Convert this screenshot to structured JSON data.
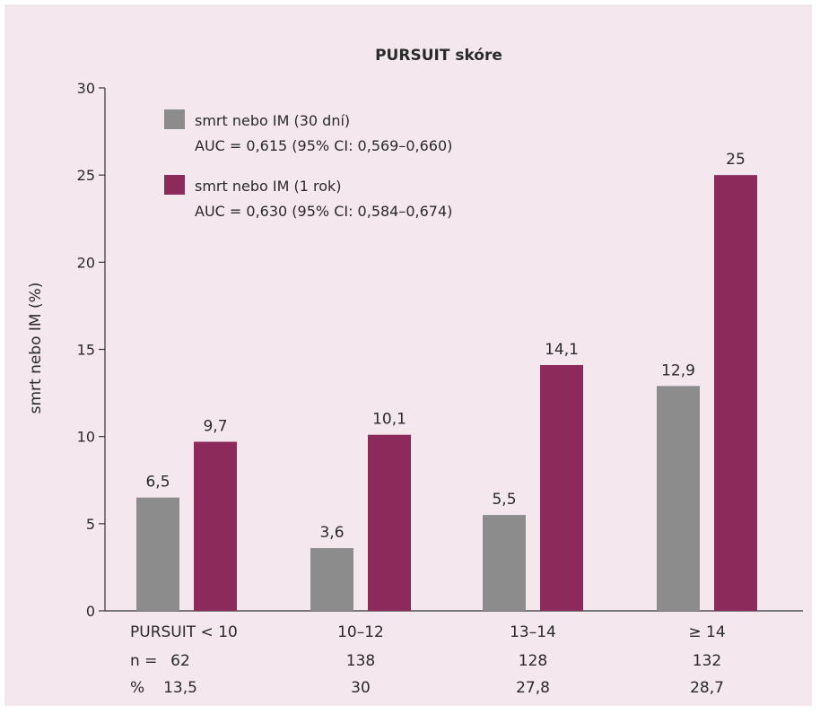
{
  "chart_data": {
    "type": "bar",
    "title": "PURSUIT skóre",
    "ylabel": "smrt nebo IM (%)",
    "xlabel": "",
    "ylim": [
      0,
      30
    ],
    "yticks": [
      0,
      5,
      10,
      15,
      20,
      25,
      30
    ],
    "grid": false,
    "legend_position": "top-left",
    "categories": [
      "PURSUIT < 10",
      "10–12",
      "13–14",
      "≥ 14"
    ],
    "category_rows": [
      {
        "prefix": "n =",
        "values": [
          "62",
          "138",
          "128",
          "132"
        ]
      },
      {
        "prefix": "%",
        "values": [
          "13,5",
          "30",
          "27,8",
          "28,7"
        ]
      }
    ],
    "series": [
      {
        "name": "smrt nebo IM (30 dní)",
        "auc": "AUC = 0,615 (95% CI: 0,569–0,660)",
        "color": "#8c8c8c",
        "values": [
          6.5,
          3.6,
          5.5,
          12.9
        ],
        "labels": [
          "6,5",
          "3,6",
          "5,5",
          "12,9"
        ]
      },
      {
        "name": "smrt nebo IM (1 rok)",
        "auc": "AUC = 0,630 (95% CI: 0,584–0,674)",
        "color": "#8b2a5b",
        "values": [
          9.7,
          10.1,
          14.1,
          25
        ],
        "labels": [
          "9,7",
          "10,1",
          "14,1",
          "25"
        ]
      }
    ]
  }
}
